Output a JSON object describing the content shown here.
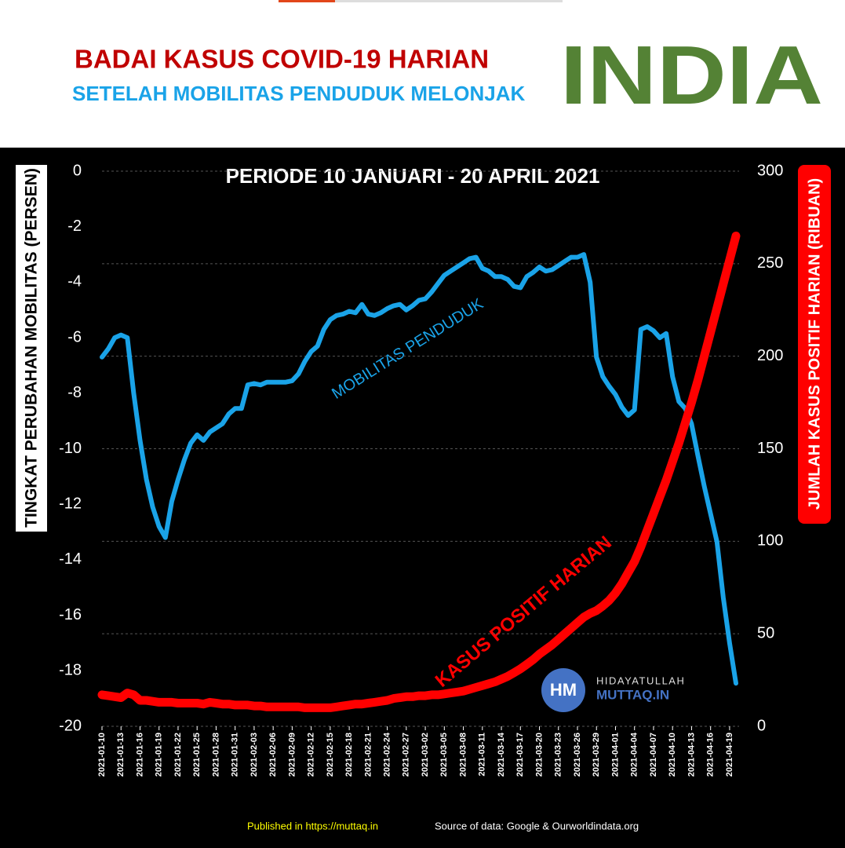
{
  "header": {
    "title": "BADAI KASUS COVID-19 HARIAN",
    "subtitle": "SETELAH MOBILITAS PENDUDUK MELONJAK",
    "country": "INDIA"
  },
  "chart_data": {
    "type": "line",
    "title": "PERIODE 10 JANUARI - 20 APRIL 2021",
    "ylabel": "TINGKAT PERUBAHAN MOBILITAS (PERSEN)",
    "y2label": "JUMLAH KASUS POSITIF HARIAN (RIBUAN)",
    "categories": [
      "2021-01-10",
      null,
      null,
      "2021-01-13",
      null,
      null,
      "2021-01-16",
      null,
      null,
      "2021-01-19",
      null,
      null,
      "2021-01-22",
      null,
      null,
      "2021-01-25",
      null,
      null,
      "2021-01-28",
      null,
      null,
      "2021-01-31",
      null,
      null,
      "2021-02-03",
      null,
      null,
      "2021-02-06",
      null,
      null,
      "2021-02-09",
      null,
      null,
      "2021-02-12",
      null,
      null,
      "2021-02-15",
      null,
      null,
      "2021-02-18",
      null,
      null,
      "2021-02-21",
      null,
      null,
      "2021-02-24",
      null,
      null,
      "2021-02-27",
      null,
      null,
      "2021-03-02",
      null,
      null,
      "2021-03-05",
      null,
      null,
      "2021-03-08",
      null,
      null,
      "2021-03-11",
      null,
      null,
      "2021-03-14",
      null,
      null,
      "2021-03-17",
      null,
      null,
      "2021-03-20",
      null,
      null,
      "2021-03-23",
      null,
      null,
      "2021-03-26",
      null,
      null,
      "2021-03-29",
      null,
      null,
      "2021-04-01",
      null,
      null,
      "2021-04-04",
      null,
      null,
      "2021-04-07",
      null,
      null,
      "2021-04-10",
      null,
      null,
      "2021-04-13",
      null,
      null,
      "2021-04-16",
      null,
      null,
      "2021-04-19",
      null
    ],
    "series": [
      {
        "name": "MOBILITAS PENDUDUK",
        "color": "#1aa3e8",
        "axis": "y",
        "values": [
          -6.7,
          -6.4,
          -6.0,
          -5.9,
          -6.0,
          -8.0,
          -9.7,
          -11.1,
          -12.1,
          -12.8,
          -13.2,
          -11.9,
          -11.1,
          -10.4,
          -9.8,
          -9.5,
          -9.7,
          -9.4,
          -9.25,
          -9.1,
          -8.75,
          -8.55,
          -8.55,
          -7.7,
          -7.65,
          -7.7,
          -7.6,
          -7.6,
          -7.6,
          -7.6,
          -7.55,
          -7.3,
          -6.85,
          -6.5,
          -6.3,
          -5.7,
          -5.35,
          -5.2,
          -5.15,
          -5.05,
          -5.1,
          -4.8,
          -5.15,
          -5.2,
          -5.1,
          -4.95,
          -4.85,
          -4.8,
          -5.0,
          -4.85,
          -4.65,
          -4.6,
          -4.35,
          -4.05,
          -3.75,
          -3.6,
          -3.45,
          -3.3,
          -3.15,
          -3.1,
          -3.5,
          -3.6,
          -3.8,
          -3.8,
          -3.9,
          -4.15,
          -4.2,
          -3.8,
          -3.65,
          -3.45,
          -3.6,
          -3.55,
          -3.4,
          -3.25,
          -3.1,
          -3.1,
          -3.0,
          -4.0,
          -6.7,
          -7.4,
          -7.75,
          -8.05,
          -8.5,
          -8.8,
          -8.6,
          -5.7,
          -5.6,
          -5.75,
          -6.0,
          -5.85,
          -7.4,
          -8.3,
          -8.55,
          -9.1,
          -10.25,
          -11.35,
          -12.35,
          -13.35,
          -15.35,
          -17.0,
          -18.45
        ]
      },
      {
        "name": "KASUS POSITIF HARIAN",
        "color": "#ff0000",
        "axis": "y2",
        "values": [
          17,
          16.5,
          16,
          15.5,
          18,
          17,
          14,
          14,
          13.5,
          13,
          13,
          13,
          12.5,
          12.5,
          12.5,
          12.5,
          12,
          13,
          12.5,
          12,
          12,
          11.5,
          11.5,
          11.5,
          11,
          11,
          10.5,
          10.5,
          10.5,
          10.5,
          10.5,
          10.5,
          10,
          10,
          10,
          10,
          10,
          10.5,
          11,
          11.5,
          12,
          12,
          12.5,
          13,
          13.5,
          14,
          15,
          15.5,
          16,
          16,
          16.5,
          16.5,
          17,
          17,
          17.5,
          18,
          18.5,
          19,
          20,
          21,
          22,
          23,
          24,
          25.5,
          27,
          29,
          31,
          33.5,
          36,
          39,
          41.5,
          44,
          47,
          50,
          53,
          56,
          59,
          61,
          62.5,
          65,
          68,
          72,
          77,
          83,
          89,
          97,
          106,
          115,
          124,
          133,
          143,
          153,
          164,
          175,
          187,
          200,
          213,
          226,
          239,
          252,
          265
        ]
      }
    ],
    "ylim": [
      -20,
      0
    ],
    "yticks": [
      0,
      -2,
      -4,
      -6,
      -8,
      -10,
      -12,
      -14,
      -16,
      -18,
      -20
    ],
    "y2lim": [
      0,
      300
    ],
    "y2ticks": [
      0,
      50,
      100,
      150,
      200,
      250,
      300
    ],
    "grid": "y2"
  },
  "logo": {
    "initials": "HM",
    "line1": "HIDAYATULLAH",
    "line2": "MUTTAQ.IN"
  },
  "footer": {
    "published": "Published in https://muttaq.in",
    "source": "Source of data: Google & Ourworldindata.org"
  }
}
